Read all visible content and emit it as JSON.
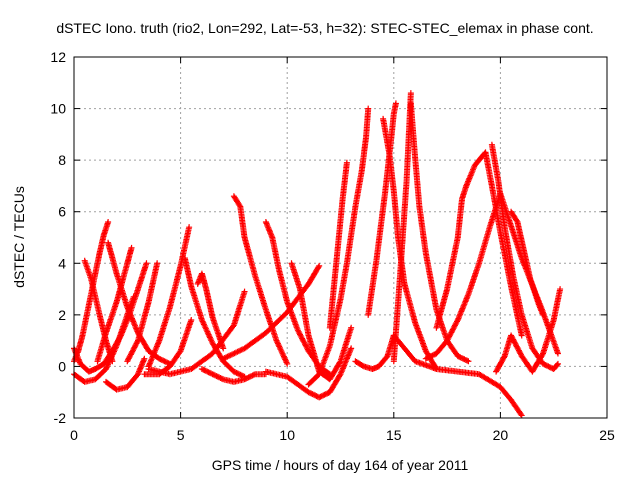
{
  "chart_data": {
    "type": "scatter",
    "title": "dSTEC Iono. truth (rio2, Lon=292, Lat=-53, h=32): STEC-STEC_elemax in phase cont.",
    "xlabel": "GPS time / hours of day 164 of year 2011",
    "ylabel": "dSTEC  / TECUs",
    "xlim": [
      0,
      25
    ],
    "ylim": [
      -2,
      12
    ],
    "xticks": [
      0,
      5,
      10,
      15,
      20,
      25
    ],
    "yticks": [
      -2,
      0,
      2,
      4,
      6,
      8,
      10,
      12
    ],
    "grid": true,
    "marker": "+",
    "color": "#ff0000",
    "series": [
      {
        "x": [
          0.0,
          0.2,
          0.4,
          0.7,
          1.0,
          1.2,
          1.4,
          1.6
        ],
        "y": [
          0.2,
          0.6,
          1.2,
          2.4,
          3.6,
          4.4,
          5.1,
          5.6
        ]
      },
      {
        "x": [
          0.0,
          0.3,
          0.7,
          1.0,
          1.4,
          1.8,
          2.2,
          2.6,
          3.0,
          3.2,
          3.4
        ],
        "y": [
          0.7,
          0.1,
          -0.2,
          -0.1,
          0.1,
          0.6,
          1.2,
          2.0,
          3.0,
          3.5,
          4.0
        ]
      },
      {
        "x": [
          0.0,
          0.5,
          1.0,
          1.5,
          2.0,
          2.5,
          2.8
        ],
        "y": [
          -0.3,
          -0.6,
          -0.5,
          -0.1,
          0.8,
          2.0,
          2.7
        ]
      },
      {
        "x": [
          0.5,
          0.8,
          1.0,
          1.2,
          1.5,
          1.8
        ],
        "y": [
          4.1,
          3.4,
          2.7,
          2.0,
          1.0,
          0.2
        ]
      },
      {
        "x": [
          1.1,
          1.5,
          2.0,
          2.5,
          2.7
        ],
        "y": [
          0.2,
          1.3,
          2.5,
          4.0,
          4.6
        ]
      },
      {
        "x": [
          1.6,
          2.0,
          2.5,
          3.0,
          3.5,
          4.0,
          4.5
        ],
        "y": [
          4.8,
          3.6,
          2.3,
          1.3,
          0.6,
          0.3,
          0.1
        ]
      },
      {
        "x": [
          1.5,
          2.0,
          2.5,
          3.0,
          3.3
        ],
        "y": [
          -0.6,
          -0.9,
          -0.8,
          -0.3,
          0.3
        ]
      },
      {
        "x": [
          2.5,
          3.0,
          3.5,
          3.9
        ],
        "y": [
          0.2,
          1.0,
          2.5,
          4.0
        ]
      },
      {
        "x": [
          3.3,
          4.0,
          4.5,
          5.0,
          5.5
        ],
        "y": [
          -0.3,
          -0.3,
          0.0,
          0.6,
          1.8
        ]
      },
      {
        "x": [
          3.5,
          4.0,
          4.5,
          5.0,
          5.4
        ],
        "y": [
          0.0,
          1.0,
          2.3,
          3.9,
          5.4
        ]
      },
      {
        "x": [
          3.5,
          4.5,
          5.5,
          6.5,
          7.5,
          8.0
        ],
        "y": [
          -0.1,
          -0.3,
          -0.1,
          0.5,
          1.6,
          2.9
        ]
      },
      {
        "x": [
          5.2,
          5.5,
          6.0,
          6.5,
          7.0,
          7.5,
          8.0
        ],
        "y": [
          4.2,
          3.1,
          1.8,
          0.9,
          0.2,
          -0.2,
          -0.4
        ]
      },
      {
        "x": [
          5.8,
          6.0,
          6.2,
          6.5,
          7.0
        ],
        "y": [
          3.2,
          3.6,
          3.0,
          1.9,
          0.7
        ]
      },
      {
        "x": [
          6.0,
          6.5,
          7.0,
          7.5,
          8.0,
          8.5,
          9.0
        ],
        "y": [
          -0.1,
          -0.3,
          -0.5,
          -0.6,
          -0.5,
          -0.3,
          -0.3
        ]
      },
      {
        "x": [
          7.5,
          7.8,
          8.0,
          8.5,
          9.0,
          9.5,
          10.0
        ],
        "y": [
          6.6,
          6.2,
          5.0,
          3.5,
          2.2,
          1.0,
          0.1
        ]
      },
      {
        "x": [
          7.0,
          8.0,
          9.0,
          10.0,
          11.0,
          11.5
        ],
        "y": [
          0.3,
          0.7,
          1.3,
          2.1,
          3.2,
          3.9
        ]
      },
      {
        "x": [
          9.0,
          9.3,
          9.6,
          10.0,
          10.5,
          11.0,
          11.5,
          12.0
        ],
        "y": [
          5.6,
          5.0,
          3.8,
          2.5,
          1.4,
          0.6,
          0.0,
          -0.3
        ]
      },
      {
        "x": [
          9.0,
          10.0,
          11.0,
          11.5,
          12.0,
          12.5,
          13.0
        ],
        "y": [
          -0.2,
          -0.4,
          -1.0,
          -1.2,
          -1.0,
          -0.3,
          0.7
        ]
      },
      {
        "x": [
          10.2,
          10.6,
          11.0,
          11.5,
          12.0,
          12.5,
          13.0
        ],
        "y": [
          4.0,
          3.0,
          1.2,
          -0.2,
          -0.5,
          0.2,
          1.5
        ]
      },
      {
        "x": [
          11.0,
          11.5,
          12.0,
          12.5,
          12.8,
          13.0,
          13.2,
          13.5,
          13.7,
          13.8
        ],
        "y": [
          -0.7,
          -0.3,
          0.8,
          2.6,
          4.0,
          5.1,
          6.2,
          7.6,
          8.9,
          10.0
        ]
      },
      {
        "x": [
          12.0,
          12.3,
          12.6,
          12.8
        ],
        "y": [
          1.5,
          4.0,
          6.5,
          7.9
        ]
      },
      {
        "x": [
          13.2,
          13.6,
          14.0,
          14.3,
          14.7,
          15.0
        ],
        "y": [
          0.2,
          0.0,
          -0.1,
          0.0,
          0.4,
          1.2
        ]
      },
      {
        "x": [
          13.8,
          14.2,
          14.6,
          14.9,
          15.0,
          15.1
        ],
        "y": [
          2.0,
          4.2,
          6.8,
          9.0,
          9.8,
          10.2
        ]
      },
      {
        "x": [
          14.5,
          14.8,
          15.0,
          15.2,
          15.5,
          16.0,
          16.5,
          17.0
        ],
        "y": [
          9.6,
          8.2,
          6.8,
          5.0,
          3.2,
          1.7,
          0.6,
          -0.1
        ]
      },
      {
        "x": [
          15.0,
          15.3,
          15.6,
          15.8
        ],
        "y": [
          0.2,
          3.6,
          7.2,
          10.6
        ]
      },
      {
        "x": [
          15.8,
          16.0,
          16.2,
          16.5,
          17.0,
          17.5,
          18.0,
          18.5
        ],
        "y": [
          10.2,
          8.1,
          6.2,
          4.4,
          2.2,
          1.0,
          0.4,
          0.2
        ]
      },
      {
        "x": [
          15.0,
          16.0,
          17.0,
          18.0,
          19.0,
          20.0,
          20.5,
          21.0
        ],
        "y": [
          1.2,
          0.2,
          -0.1,
          -0.2,
          -0.3,
          -0.8,
          -1.3,
          -1.9
        ]
      },
      {
        "x": [
          16.5,
          17.0,
          17.5,
          18.0,
          18.5,
          19.0,
          19.5,
          20.0,
          21.0,
          22.0,
          22.7
        ],
        "y": [
          0.3,
          0.5,
          1.0,
          1.8,
          2.8,
          4.0,
          5.4,
          6.7,
          4.2,
          2.1,
          0.5
        ]
      },
      {
        "x": [
          17.0,
          17.5,
          18.0,
          18.2,
          18.4
        ],
        "y": [
          1.5,
          3.0,
          5.0,
          6.5,
          7.0
        ]
      },
      {
        "x": [
          18.4,
          18.8,
          19.0,
          19.3,
          19.6,
          20.0,
          20.5,
          21.0
        ],
        "y": [
          7.0,
          7.8,
          8.0,
          8.3,
          7.0,
          5.2,
          3.1,
          1.2
        ]
      },
      {
        "x": [
          19.6,
          19.9,
          20.2,
          20.6,
          21.0,
          21.5,
          22.0,
          22.5,
          22.7
        ],
        "y": [
          8.6,
          7.2,
          5.4,
          3.5,
          2.0,
          0.7,
          0.1,
          -0.1,
          0.1
        ]
      },
      {
        "x": [
          19.8,
          20.2,
          20.5,
          21.0,
          21.5,
          22.0,
          22.5,
          22.8
        ],
        "y": [
          -0.2,
          0.4,
          1.2,
          0.4,
          -0.2,
          0.5,
          1.8,
          3.0
        ]
      },
      {
        "x": [
          20.5,
          20.8,
          21.1,
          21.4,
          21.8,
          22.0
        ],
        "y": [
          6.0,
          5.6,
          4.5,
          3.4,
          2.4,
          2.0
        ]
      }
    ]
  }
}
